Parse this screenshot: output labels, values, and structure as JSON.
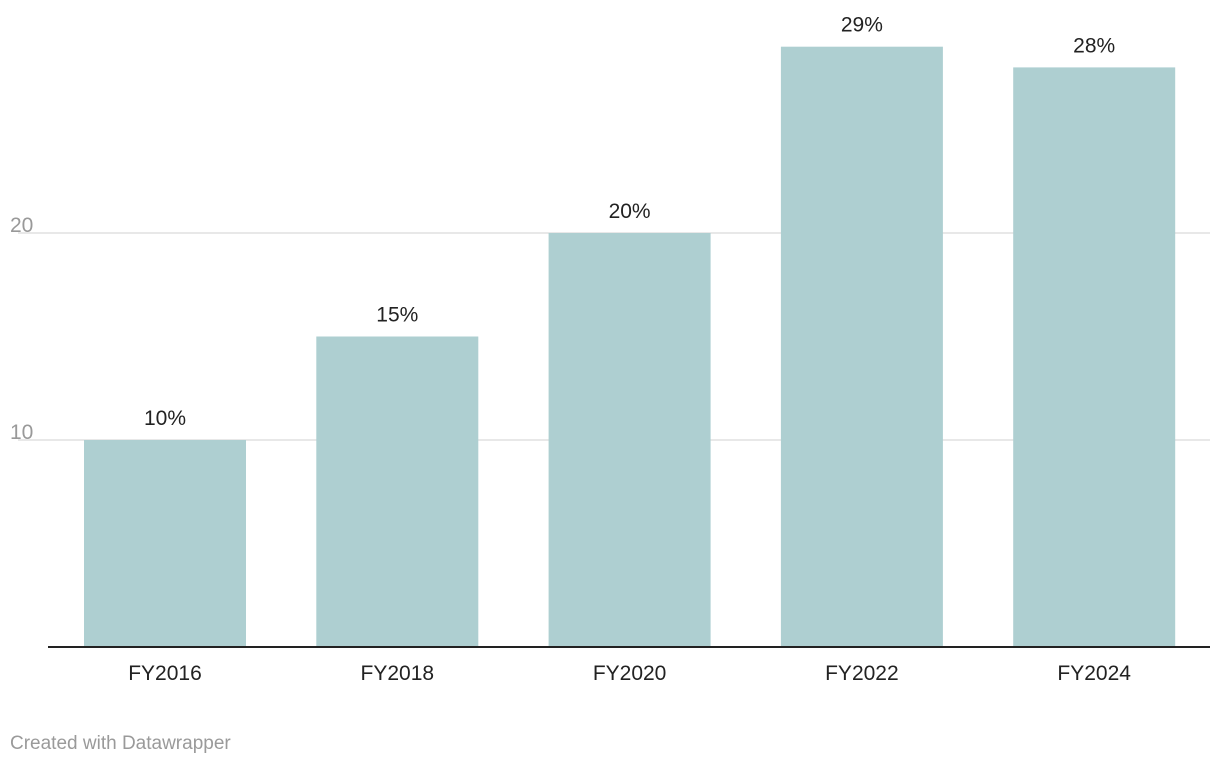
{
  "credit": "Created with Datawrapper",
  "colors": {
    "bar": "#aecfd1",
    "grid": "#e0e0e0",
    "axis": "#222222",
    "tick_label": "#999999",
    "category_label": "#222222",
    "value_label": "#222222"
  },
  "chart_data": {
    "type": "bar",
    "categories": [
      "FY2016",
      "FY2018",
      "FY2020",
      "FY2022",
      "FY2024"
    ],
    "values": [
      10,
      15,
      20,
      29,
      28
    ],
    "value_labels": [
      "10%",
      "15%",
      "20%",
      "29%",
      "28%"
    ],
    "y_ticks": [
      10,
      20
    ],
    "y_tick_labels": [
      "10",
      "20"
    ],
    "ylim": [
      0,
      30
    ],
    "grid": true,
    "title": "",
    "xlabel": "",
    "ylabel": ""
  }
}
